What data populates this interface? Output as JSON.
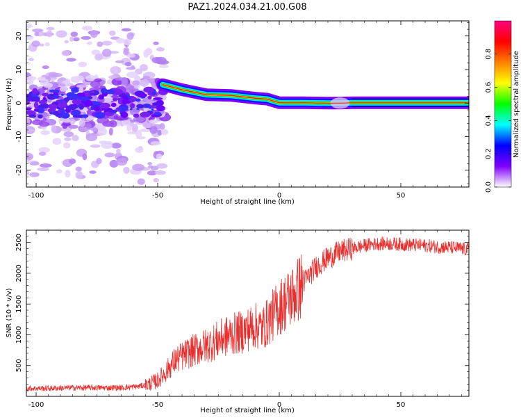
{
  "title": "PAZ1.2024.034.21.00.G08",
  "chart_data": [
    {
      "type": "heatmap",
      "xlabel": "Height of straight line (km)",
      "ylabel": "Frequency (Hz)",
      "xlim": [
        -104,
        78
      ],
      "ylim": [
        -25,
        24.5
      ],
      "xticks": [
        -100,
        -50,
        0,
        50
      ],
      "yticks": [
        -20,
        -10,
        0,
        10,
        20
      ],
      "colorbar": {
        "label": "Normalized spectral amplitude",
        "range": [
          0,
          1
        ],
        "ticks": [
          0.0,
          0.2,
          0.4,
          0.6,
          0.8
        ],
        "colormap": [
          "#ffffff",
          "#8000ff",
          "#0000ff",
          "#00ffff",
          "#00ff00",
          "#ffff00",
          "#ff8000",
          "#ff0000",
          "#ff0080"
        ]
      },
      "ridge": [
        {
          "x": -48,
          "y": 5.5
        },
        {
          "x": -40,
          "y": 4.0
        },
        {
          "x": -30,
          "y": 2.5
        },
        {
          "x": -20,
          "y": 2.3
        },
        {
          "x": -10,
          "y": 1.5
        },
        {
          "x": -5,
          "y": 1.2
        },
        {
          "x": 0,
          "y": 0.1
        },
        {
          "x": 10,
          "y": 0.1
        },
        {
          "x": 20,
          "y": 0.0
        },
        {
          "x": 25,
          "y": 0.0
        },
        {
          "x": 30,
          "y": 0.1
        },
        {
          "x": 50,
          "y": 0.1
        },
        {
          "x": 78,
          "y": 0.1
        }
      ]
    },
    {
      "type": "line",
      "xlabel": "Height of straight line (km)",
      "ylabel": "SNR (10 * v/v)",
      "xlim": [
        -104,
        78
      ],
      "ylim": [
        0,
        2700
      ],
      "xticks": [
        -100,
        -50,
        0,
        50
      ],
      "yticks": [
        500,
        1000,
        1500,
        2000,
        2500
      ],
      "color": "#e8302f",
      "series": [
        {
          "x": [
            -104,
            -95,
            -85,
            -75,
            -65,
            -58,
            -54,
            -50,
            -47,
            -43,
            -40,
            -35,
            -30,
            -25,
            -20,
            -15,
            -10,
            -7,
            -5,
            -2,
            0,
            3,
            6,
            10,
            15,
            20,
            25,
            30,
            35,
            40,
            45,
            50,
            55,
            60,
            65,
            70,
            75,
            78
          ],
          "values": [
            130,
            130,
            140,
            140,
            140,
            160,
            190,
            260,
            380,
            580,
            650,
            750,
            820,
            920,
            1000,
            1050,
            1150,
            1100,
            1200,
            1350,
            1450,
            1550,
            1650,
            1850,
            2100,
            2250,
            2350,
            2400,
            2450,
            2480,
            2480,
            2470,
            2460,
            2450,
            2430,
            2420,
            2400,
            2380
          ]
        }
      ]
    }
  ]
}
